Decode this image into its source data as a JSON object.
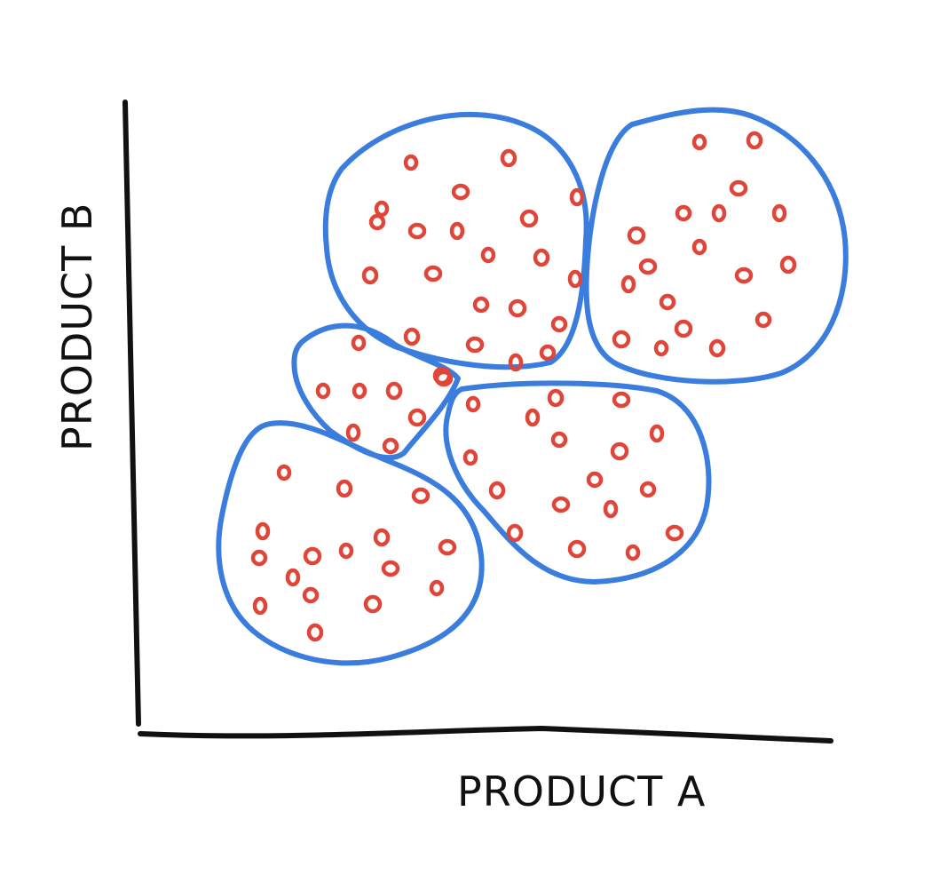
{
  "axes": {
    "x_label": "PRODUCT A",
    "y_label": "PRODUCT B"
  },
  "colors": {
    "axis": "#111111",
    "cluster_outline": "#3b7ddd",
    "point": "#e0453a",
    "background": "#ffffff"
  },
  "clusters": [
    {
      "id": "cluster-top-center",
      "point_count": 23
    },
    {
      "id": "cluster-top-right",
      "point_count": 18
    },
    {
      "id": "cluster-small-middle",
      "point_count": 7
    },
    {
      "id": "cluster-bottom-left",
      "point_count": 16
    },
    {
      "id": "cluster-bottom-right",
      "point_count": 17
    }
  ]
}
